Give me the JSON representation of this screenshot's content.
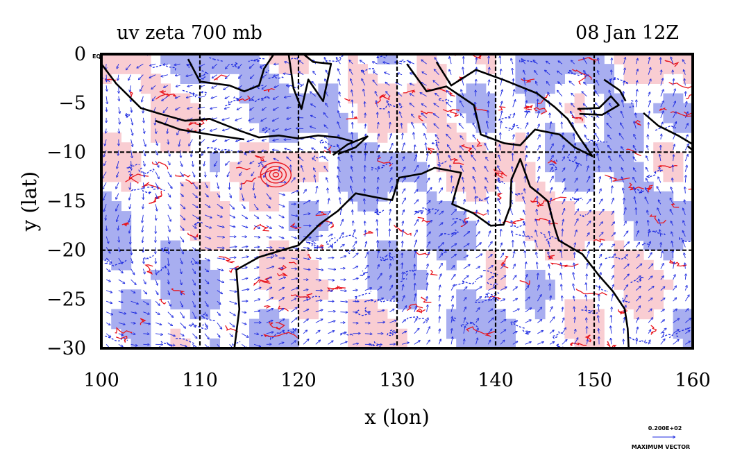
{
  "plot": {
    "title_left": "uv zeta 700 mb",
    "title_right": "08 Jan 12Z",
    "xlabel": "x (lon)",
    "ylabel": "y (lat)",
    "corner_label": "EQ",
    "x_ticks": [
      "100",
      "110",
      "120",
      "130",
      "140",
      "150",
      "160"
    ],
    "y_ticks": [
      "0",
      "−5",
      "−10",
      "−15",
      "−20",
      "−25",
      "−30"
    ],
    "x_range": [
      100,
      160
    ],
    "y_range": [
      -30,
      0
    ],
    "grid_lon": [
      110,
      120,
      130,
      140,
      150
    ],
    "grid_lat": [
      -10,
      -20
    ],
    "vector_scale_value": "0.200E+02",
    "vector_scale_label": "MAXIMUM VECTOR"
  },
  "colors": {
    "positive_vorticity_fill": "#f9cdd2",
    "positive_vorticity_contour": "#e8141c",
    "negative_vorticity_fill": "#a8aef0",
    "wind_vectors": "#1d2ae0",
    "coastline": "#000000",
    "background": "#ffffff"
  }
}
